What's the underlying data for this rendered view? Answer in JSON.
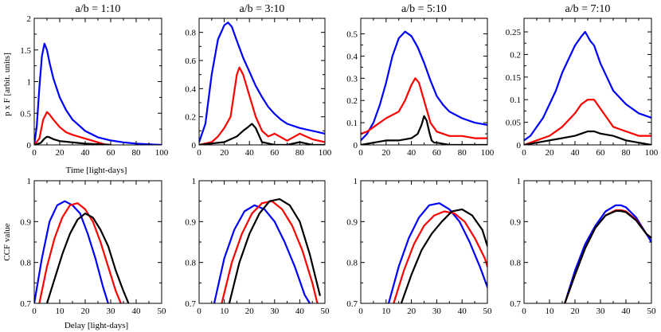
{
  "figure": {
    "ylabel_top": "p x F [arbit. units]",
    "xlabel_top": "Time [light-days]",
    "ylabel_bottom": "CCF value",
    "xlabel_bottom": "Delay [light-days]"
  },
  "colors": {
    "blue": "#0000ff",
    "red": "#ff0000",
    "black": "#000000"
  },
  "chart_data": [
    {
      "type": "line",
      "row": "top",
      "panel": 1,
      "title": "a/b = 1:10",
      "xlim": [
        0,
        100
      ],
      "ylim": [
        0,
        2
      ],
      "xticks": [
        0,
        20,
        40,
        60,
        80,
        100
      ],
      "yticks": [
        0,
        0.5,
        1,
        1.5,
        2
      ],
      "yticklabels": [
        "0",
        "0.5",
        "1",
        "1.5",
        "2"
      ],
      "series": [
        {
          "name": "blue",
          "color": "#0000ff",
          "x": [
            0,
            2,
            4,
            6,
            8,
            10,
            12,
            15,
            20,
            25,
            30,
            40,
            50,
            60,
            70,
            80,
            90,
            100
          ],
          "y": [
            0,
            0.3,
            0.9,
            1.4,
            1.6,
            1.5,
            1.3,
            1.05,
            0.75,
            0.55,
            0.4,
            0.22,
            0.12,
            0.07,
            0.04,
            0.02,
            0.01,
            0
          ]
        },
        {
          "name": "red",
          "color": "#ff0000",
          "x": [
            0,
            4,
            7,
            10,
            12,
            15,
            20,
            25,
            30,
            35,
            40,
            45,
            50,
            55,
            60
          ],
          "y": [
            0,
            0.1,
            0.4,
            0.52,
            0.48,
            0.4,
            0.28,
            0.2,
            0.16,
            0.13,
            0.1,
            0.07,
            0.04,
            0.01,
            0
          ]
        },
        {
          "name": "black",
          "color": "#000000",
          "x": [
            0,
            5,
            8,
            10,
            12,
            15,
            20,
            25,
            30,
            35,
            40,
            50,
            60
          ],
          "y": [
            0,
            0.03,
            0.1,
            0.13,
            0.12,
            0.09,
            0.06,
            0.05,
            0.04,
            0.03,
            0.02,
            0.01,
            0
          ]
        }
      ]
    },
    {
      "type": "line",
      "row": "top",
      "panel": 2,
      "title": "a/b = 3:10",
      "xlim": [
        0,
        100
      ],
      "ylim": [
        0,
        0.9
      ],
      "xticks": [
        0,
        20,
        40,
        60,
        80,
        100
      ],
      "yticks": [
        0,
        0.2,
        0.4,
        0.6,
        0.8
      ],
      "yticklabels": [
        "0",
        "0.2",
        "0.4",
        "0.6",
        "0.8"
      ],
      "series": [
        {
          "name": "blue",
          "color": "#0000ff",
          "x": [
            0,
            5,
            10,
            15,
            20,
            23,
            26,
            30,
            35,
            40,
            45,
            50,
            55,
            60,
            65,
            70,
            80,
            90,
            100
          ],
          "y": [
            0.02,
            0.15,
            0.5,
            0.75,
            0.85,
            0.87,
            0.84,
            0.74,
            0.62,
            0.52,
            0.42,
            0.34,
            0.27,
            0.22,
            0.18,
            0.15,
            0.12,
            0.1,
            0.08
          ]
        },
        {
          "name": "red",
          "color": "#ff0000",
          "x": [
            0,
            10,
            15,
            20,
            25,
            28,
            30,
            32,
            35,
            40,
            45,
            50,
            55,
            60,
            70,
            80,
            90,
            100
          ],
          "y": [
            0,
            0.02,
            0.06,
            0.12,
            0.2,
            0.38,
            0.5,
            0.55,
            0.5,
            0.35,
            0.2,
            0.1,
            0.06,
            0.08,
            0.03,
            0.08,
            0.04,
            0.02
          ]
        },
        {
          "name": "black",
          "color": "#000000",
          "x": [
            0,
            10,
            20,
            25,
            30,
            35,
            38,
            42,
            45,
            48,
            50,
            55,
            60,
            70,
            80,
            90,
            100
          ],
          "y": [
            0,
            0.01,
            0.02,
            0.04,
            0.06,
            0.1,
            0.12,
            0.15,
            0.12,
            0.06,
            0.02,
            0.01,
            0,
            0,
            0.02,
            0,
            0
          ]
        }
      ]
    },
    {
      "type": "line",
      "row": "top",
      "panel": 3,
      "title": "a/b = 5:10",
      "xlim": [
        0,
        100
      ],
      "ylim": [
        0,
        0.57
      ],
      "xticks": [
        0,
        20,
        40,
        60,
        80,
        100
      ],
      "yticks": [
        0,
        0.1,
        0.2,
        0.3,
        0.4,
        0.5
      ],
      "yticklabels": [
        "0",
        "0.1",
        "0.2",
        "0.3",
        "0.4",
        "0.5"
      ],
      "series": [
        {
          "name": "blue",
          "color": "#0000ff",
          "x": [
            0,
            5,
            10,
            15,
            20,
            25,
            30,
            35,
            40,
            45,
            50,
            55,
            60,
            65,
            70,
            80,
            90,
            100
          ],
          "y": [
            0.02,
            0.05,
            0.1,
            0.18,
            0.28,
            0.4,
            0.48,
            0.51,
            0.49,
            0.44,
            0.37,
            0.29,
            0.22,
            0.18,
            0.15,
            0.12,
            0.1,
            0.09
          ]
        },
        {
          "name": "red",
          "color": "#ff0000",
          "x": [
            0,
            5,
            10,
            20,
            30,
            35,
            40,
            43,
            46,
            50,
            55,
            60,
            70,
            80,
            90,
            100
          ],
          "y": [
            0.05,
            0.06,
            0.08,
            0.12,
            0.15,
            0.2,
            0.27,
            0.3,
            0.28,
            0.2,
            0.1,
            0.06,
            0.04,
            0.04,
            0.03,
            0.03
          ]
        },
        {
          "name": "black",
          "color": "#000000",
          "x": [
            0,
            10,
            20,
            30,
            40,
            45,
            48,
            50,
            52,
            54,
            56,
            58,
            60,
            70,
            80,
            90,
            100
          ],
          "y": [
            0,
            0.01,
            0.02,
            0.02,
            0.03,
            0.05,
            0.09,
            0.13,
            0.11,
            0.06,
            0.02,
            0.01,
            0.01,
            0,
            0,
            0,
            0
          ]
        }
      ]
    },
    {
      "type": "line",
      "row": "top",
      "panel": 4,
      "title": "a/b = 7:10",
      "xlim": [
        0,
        100
      ],
      "ylim": [
        0,
        0.28
      ],
      "xticks": [
        0,
        20,
        40,
        60,
        80,
        100
      ],
      "yticks": [
        0,
        0.05,
        0.1,
        0.15,
        0.2,
        0.25
      ],
      "yticklabels": [
        "0",
        "0.05",
        "0.1",
        "0.15",
        "0.2",
        "0.25"
      ],
      "series": [
        {
          "name": "blue",
          "color": "#0000ff",
          "x": [
            0,
            5,
            10,
            15,
            20,
            25,
            30,
            35,
            40,
            45,
            48,
            52,
            55,
            60,
            65,
            70,
            80,
            90,
            100
          ],
          "y": [
            0.01,
            0.02,
            0.04,
            0.06,
            0.09,
            0.12,
            0.16,
            0.19,
            0.22,
            0.24,
            0.25,
            0.23,
            0.22,
            0.18,
            0.15,
            0.12,
            0.09,
            0.07,
            0.06
          ]
        },
        {
          "name": "red",
          "color": "#ff0000",
          "x": [
            0,
            10,
            20,
            30,
            40,
            45,
            50,
            55,
            60,
            65,
            70,
            80,
            90,
            100
          ],
          "y": [
            0,
            0.01,
            0.02,
            0.04,
            0.07,
            0.09,
            0.1,
            0.1,
            0.08,
            0.06,
            0.04,
            0.03,
            0.02,
            0.02
          ]
        },
        {
          "name": "black",
          "color": "#000000",
          "x": [
            0,
            10,
            20,
            30,
            40,
            45,
            50,
            55,
            60,
            70,
            80,
            90,
            100
          ],
          "y": [
            0,
            0.005,
            0.01,
            0.015,
            0.02,
            0.025,
            0.03,
            0.03,
            0.025,
            0.02,
            0.01,
            0.005,
            0
          ]
        }
      ]
    },
    {
      "type": "line",
      "row": "bottom",
      "panel": 1,
      "xlim": [
        0,
        50
      ],
      "ylim": [
        0.7,
        1
      ],
      "xticks": [
        0,
        10,
        20,
        30,
        40,
        50
      ],
      "yticks": [
        0.7,
        0.8,
        0.9,
        1
      ],
      "yticklabels": [
        "0.7",
        "0.8",
        "0.9",
        "1"
      ],
      "series": [
        {
          "name": "blue",
          "color": "#0000ff",
          "x": [
            0,
            3,
            6,
            9,
            12,
            15,
            18,
            21,
            24,
            27,
            29
          ],
          "y": [
            0.7,
            0.81,
            0.9,
            0.94,
            0.95,
            0.94,
            0.92,
            0.87,
            0.81,
            0.74,
            0.7
          ]
        },
        {
          "name": "red",
          "color": "#ff0000",
          "x": [
            2,
            5,
            8,
            11,
            14,
            17,
            20,
            23,
            26,
            29,
            32,
            34
          ],
          "y": [
            0.7,
            0.79,
            0.86,
            0.91,
            0.94,
            0.945,
            0.93,
            0.9,
            0.85,
            0.79,
            0.73,
            0.7
          ]
        },
        {
          "name": "black",
          "color": "#000000",
          "x": [
            5,
            8,
            11,
            14,
            17,
            20,
            23,
            26,
            29,
            32,
            35,
            37
          ],
          "y": [
            0.7,
            0.76,
            0.82,
            0.87,
            0.905,
            0.92,
            0.91,
            0.88,
            0.84,
            0.78,
            0.73,
            0.7
          ]
        }
      ]
    },
    {
      "type": "line",
      "row": "bottom",
      "panel": 2,
      "xlim": [
        0,
        50
      ],
      "ylim": [
        0.7,
        1
      ],
      "xticks": [
        0,
        10,
        20,
        30,
        40,
        50
      ],
      "yticks": [
        0.7,
        0.8,
        0.9,
        1
      ],
      "yticklabels": [
        "0.7",
        "0.8",
        "0.9",
        "1"
      ],
      "series": [
        {
          "name": "blue",
          "color": "#0000ff",
          "x": [
            6,
            10,
            14,
            18,
            22,
            26,
            30,
            34,
            38,
            42,
            44
          ],
          "y": [
            0.7,
            0.81,
            0.88,
            0.925,
            0.94,
            0.93,
            0.9,
            0.85,
            0.79,
            0.72,
            0.7
          ]
        },
        {
          "name": "red",
          "color": "#ff0000",
          "x": [
            9,
            13,
            17,
            21,
            25,
            29,
            33,
            37,
            41,
            45,
            47
          ],
          "y": [
            0.7,
            0.8,
            0.87,
            0.92,
            0.945,
            0.95,
            0.93,
            0.89,
            0.83,
            0.75,
            0.7
          ]
        },
        {
          "name": "black",
          "color": "#000000",
          "x": [
            12,
            16,
            20,
            24,
            28,
            32,
            36,
            40,
            44,
            48
          ],
          "y": [
            0.7,
            0.8,
            0.87,
            0.92,
            0.95,
            0.955,
            0.94,
            0.9,
            0.82,
            0.72
          ]
        }
      ]
    },
    {
      "type": "line",
      "row": "bottom",
      "panel": 3,
      "xlim": [
        0,
        50
      ],
      "ylim": [
        0.7,
        1
      ],
      "xticks": [
        0,
        10,
        20,
        30,
        40,
        50
      ],
      "yticks": [
        0.7,
        0.8,
        0.9,
        1
      ],
      "yticklabels": [
        "0.7",
        "0.8",
        "0.9",
        "1"
      ],
      "series": [
        {
          "name": "blue",
          "color": "#0000ff",
          "x": [
            11,
            15,
            19,
            23,
            27,
            31,
            35,
            39,
            43,
            47,
            50
          ],
          "y": [
            0.7,
            0.79,
            0.86,
            0.91,
            0.94,
            0.945,
            0.93,
            0.9,
            0.85,
            0.79,
            0.74
          ]
        },
        {
          "name": "red",
          "color": "#ff0000",
          "x": [
            13,
            17,
            21,
            25,
            29,
            33,
            37,
            41,
            45,
            49,
            50
          ],
          "y": [
            0.7,
            0.78,
            0.845,
            0.89,
            0.915,
            0.925,
            0.92,
            0.9,
            0.86,
            0.81,
            0.79
          ]
        },
        {
          "name": "black",
          "color": "#000000",
          "x": [
            16,
            20,
            24,
            28,
            32,
            36,
            40,
            44,
            48,
            50
          ],
          "y": [
            0.7,
            0.77,
            0.83,
            0.87,
            0.9,
            0.925,
            0.93,
            0.915,
            0.88,
            0.84
          ]
        }
      ]
    },
    {
      "type": "line",
      "row": "bottom",
      "panel": 4,
      "xlim": [
        0,
        50
      ],
      "ylim": [
        0.7,
        1
      ],
      "xticks": [
        0,
        10,
        20,
        30,
        40,
        50
      ],
      "yticks": [
        0.7,
        0.8,
        0.9,
        1
      ],
      "yticklabels": [
        "0.7",
        "0.8",
        "0.9",
        "1"
      ],
      "series": [
        {
          "name": "blue",
          "color": "#0000ff",
          "x": [
            16,
            20,
            24,
            28,
            32,
            36,
            38,
            40,
            44,
            48,
            50
          ],
          "y": [
            0.7,
            0.78,
            0.845,
            0.89,
            0.925,
            0.94,
            0.94,
            0.935,
            0.91,
            0.87,
            0.85
          ]
        },
        {
          "name": "red",
          "color": "#ff0000",
          "x": [
            16,
            20,
            24,
            28,
            32,
            36,
            38,
            40,
            44,
            48,
            50
          ],
          "y": [
            0.7,
            0.77,
            0.835,
            0.885,
            0.915,
            0.928,
            0.928,
            0.925,
            0.905,
            0.87,
            0.86
          ]
        },
        {
          "name": "black",
          "color": "#000000",
          "x": [
            16,
            20,
            24,
            28,
            32,
            36,
            38,
            40,
            44,
            48,
            50
          ],
          "y": [
            0.7,
            0.77,
            0.835,
            0.885,
            0.915,
            0.926,
            0.926,
            0.923,
            0.903,
            0.87,
            0.86
          ]
        }
      ]
    }
  ]
}
